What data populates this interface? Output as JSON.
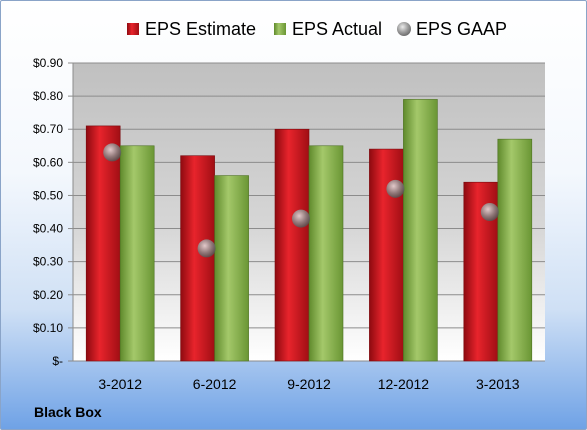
{
  "company": "Black Box",
  "colors": {
    "estimate": "#c8141c",
    "actual": "#8cb44a",
    "gaap": "#8a8a8a"
  },
  "chart_data": {
    "type": "bar",
    "categories": [
      "3-2012",
      "6-2012",
      "9-2012",
      "12-2012",
      "3-2013"
    ],
    "series": [
      {
        "name": "EPS Estimate",
        "kind": "bar",
        "values": [
          0.71,
          0.62,
          0.7,
          0.64,
          0.54
        ]
      },
      {
        "name": "EPS Actual",
        "kind": "bar",
        "values": [
          0.65,
          0.56,
          0.65,
          0.79,
          0.67
        ]
      },
      {
        "name": "EPS GAAP",
        "kind": "scatter",
        "values": [
          0.63,
          0.34,
          0.43,
          0.52,
          0.45
        ]
      }
    ],
    "ylim": [
      0,
      0.9
    ],
    "yticks": [
      0,
      0.1,
      0.2,
      0.3,
      0.4,
      0.5,
      0.6,
      0.7,
      0.8,
      0.9
    ],
    "ytick_labels": [
      "$-",
      "$0.10",
      "$0.20",
      "$0.30",
      "$0.40",
      "$0.50",
      "$0.60",
      "$0.70",
      "$0.80",
      "$0.90"
    ],
    "grid": true,
    "legend_position": "top"
  }
}
